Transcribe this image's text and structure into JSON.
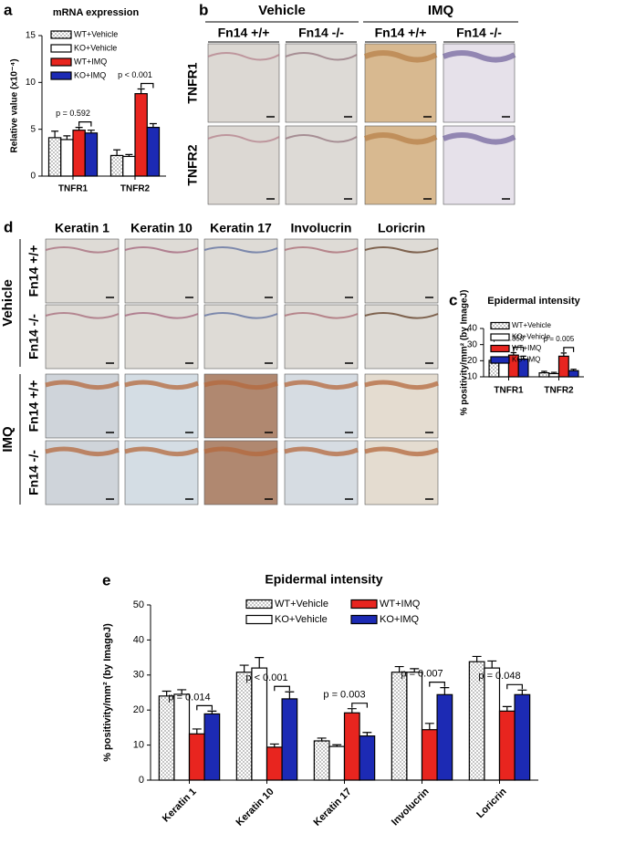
{
  "panel_labels": [
    "a",
    "b",
    "c",
    "d",
    "e"
  ],
  "panel_b": {
    "groups": [
      "Vehicle",
      "IMQ"
    ],
    "columns": [
      "Fn14 +/+",
      "Fn14 -/-",
      "Fn14 +/+",
      "Fn14 -/-"
    ],
    "rows": [
      "TNFR1",
      "TNFR2"
    ]
  },
  "panel_d": {
    "groups": [
      "Vehicle",
      "IMQ"
    ],
    "columns": [
      "Keratin 1",
      "Keratin 10",
      "Keratin 17",
      "Involucrin",
      "Loricrin"
    ],
    "rows": [
      "Fn14 +/+",
      "Fn14 -/-",
      "Fn14 +/+",
      "Fn14 -/-"
    ]
  },
  "chart_data": [
    {
      "type": "bar",
      "title": "mRNA expression",
      "y_label": "Relative value (x10⁻⁴)",
      "categories": [
        "TNFR1",
        "TNFR2"
      ],
      "ylim": [
        0,
        15
      ],
      "yticks": [
        0,
        5,
        10,
        15
      ],
      "series": [
        {
          "name": "WT+Vehicle",
          "color": "#ffffff",
          "pattern": "dots",
          "values": [
            4.1,
            2.2
          ],
          "errors": [
            0.7,
            0.6
          ]
        },
        {
          "name": "KO+Vehicle",
          "color": "#ffffff",
          "values": [
            3.9,
            2.1
          ],
          "errors": [
            0.4,
            0.2
          ]
        },
        {
          "name": "WT+IMQ",
          "color": "#e8251f",
          "values": [
            4.9,
            8.8
          ],
          "errors": [
            0.3,
            0.5
          ]
        },
        {
          "name": "KO+IMQ",
          "color": "#1c2ab4",
          "values": [
            4.6,
            5.2
          ],
          "errors": [
            0.3,
            0.4
          ]
        }
      ],
      "annotations": [
        "p = 0.592",
        "p < 0.001"
      ]
    },
    {
      "type": "bar",
      "title": "Epidermal intensity",
      "y_label": "% positivity/mm² (by ImageJ)",
      "categories": [
        "TNFR1",
        "TNFR2"
      ],
      "ylim": [
        10,
        40
      ],
      "yticks": [
        10,
        20,
        30,
        40
      ],
      "series": [
        {
          "name": "WT+Vehicle",
          "color": "#ffffff",
          "pattern": "dots",
          "values": [
            20.2,
            12.5
          ],
          "errors": [
            2.2,
            0.9
          ]
        },
        {
          "name": "KO+Vehicle",
          "color": "#ffffff",
          "values": [
            21.2,
            12.0
          ],
          "errors": [
            1.0,
            0.8
          ]
        },
        {
          "name": "WT+IMQ",
          "color": "#e8251f",
          "values": [
            23.5,
            22.8
          ],
          "errors": [
            1.5,
            2.0
          ]
        },
        {
          "name": "KO+IMQ",
          "color": "#1c2ab4",
          "values": [
            21.0,
            13.8
          ],
          "errors": [
            1.8,
            0.9
          ]
        }
      ],
      "annotations": [
        "p = 0.358",
        "p = 0.005"
      ]
    },
    {
      "type": "bar",
      "title": "Epidermal intensity",
      "y_label": "% positivity/mm² (by ImageJ)",
      "categories": [
        "Keratin 1",
        "Keratin 10",
        "Keratin 17",
        "Involucrin",
        "Loricrin"
      ],
      "ylim": [
        0,
        50
      ],
      "yticks": [
        0,
        10,
        20,
        30,
        40,
        50
      ],
      "series": [
        {
          "name": "WT+Vehicle",
          "color": "#ffffff",
          "pattern": "dots",
          "values": [
            24.0,
            30.8,
            11.2,
            30.8,
            33.8
          ],
          "errors": [
            1.4,
            2.0,
            0.8,
            1.6,
            1.5
          ]
        },
        {
          "name": "KO+Vehicle",
          "color": "#ffffff",
          "values": [
            24.5,
            32.0,
            9.6,
            30.8,
            32.0
          ],
          "errors": [
            1.3,
            3.0,
            0.5,
            1.0,
            2.0
          ]
        },
        {
          "name": "WT+IMQ",
          "color": "#e8251f",
          "values": [
            13.2,
            9.4,
            19.2,
            14.4,
            19.7
          ],
          "errors": [
            1.4,
            0.9,
            1.2,
            1.8,
            1.3
          ]
        },
        {
          "name": "KO+IMQ",
          "color": "#1c2ab4",
          "values": [
            18.9,
            23.2,
            12.6,
            24.4,
            24.4
          ],
          "errors": [
            0.8,
            2.0,
            1.0,
            2.0,
            1.3
          ]
        }
      ],
      "annotations": [
        "p = 0.014",
        "p < 0.001",
        "p = 0.003",
        "p = 0.007",
        "p = 0.048"
      ]
    }
  ]
}
